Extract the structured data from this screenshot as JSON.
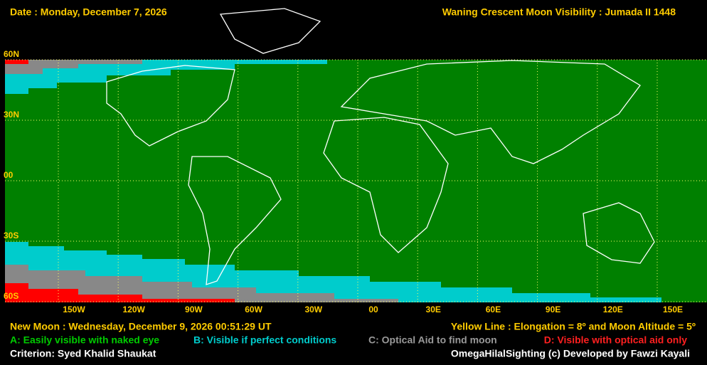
{
  "header": {
    "date": "Date : Monday, December 7, 2026",
    "title": "Waning Crescent Moon Visibility : Jumada II 1448"
  },
  "map": {
    "lat_labels": [
      "60N",
      "30N",
      "00",
      "30S",
      "60S"
    ],
    "lon_labels": [
      "150W",
      "120W",
      "90W",
      "60W",
      "30W",
      "00",
      "30E",
      "60E",
      "90E",
      "120E",
      "150E"
    ]
  },
  "footer": {
    "new_moon": "New Moon : Wednesday, December 9, 2026  00:51:29  UT",
    "yellow_line": "Yellow Line : Elongation = 8º  and Moon Altitude = 5º",
    "legend": [
      "A: Easily visible with naked eye",
      "B: Visible if perfect conditions",
      "C: Optical Aid to find moon",
      "D: Visible with optical aid only"
    ],
    "criterion": "Criterion: Syed Khalid Shaukat",
    "credit": "OmegaHilalSighting  (c)  Developed by Fawzi Kayali"
  }
}
